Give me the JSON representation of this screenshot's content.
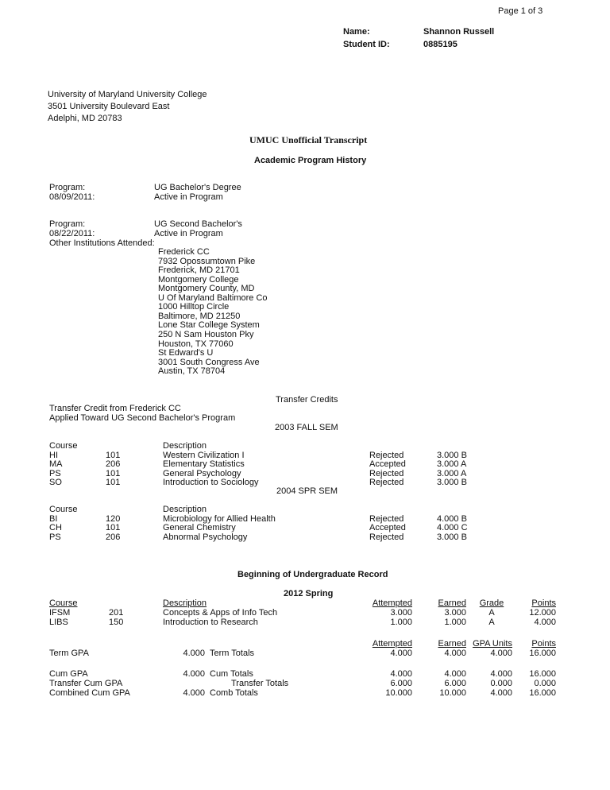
{
  "page_indicator": "Page 1 of 3",
  "student": {
    "name_label": "Name:",
    "name": "Shannon Russell",
    "id_label": "Student ID:",
    "id": "0885195"
  },
  "address": [
    "University of Maryland University College",
    "3501 University Boulevard East",
    "Adelphi, MD 20783"
  ],
  "title": "UMUC Unofficial Transcript",
  "program_history": {
    "heading": "Academic Program History",
    "programs": [
      {
        "label": "Program:",
        "value": "UG Bachelor's Degree",
        "date": "08/09/2011:",
        "status": "Active in Program"
      },
      {
        "label": "Program:",
        "value": "UG Second Bachelor's",
        "date": "08/22/2011:",
        "status": "Active in Program"
      }
    ],
    "other_label": "Other Institutions Attended:",
    "institutions": [
      "Frederick CC",
      "7932 Opossumtown Pike",
      "Frederick, MD 21701",
      "Montgomery College",
      "Montgomery County, MD",
      "U Of Maryland Baltimore Co",
      "1000 Hilltop Circle",
      "Baltimore, MD 21250",
      "Lone Star College System",
      "250 N Sam Houston Pky",
      "Houston, TX 77060",
      "St Edward's U",
      "3001 South Congress Ave",
      "Austin, TX 78704"
    ]
  },
  "transfer": {
    "heading": "Transfer Credits",
    "from": "Transfer Credit from Frederick CC",
    "applied": "Applied Toward UG Second Bachelor's Program",
    "terms": [
      {
        "term": "2003 FALL SEM",
        "course_header": "Course",
        "desc_header": "Description",
        "rows": [
          [
            "HI",
            "101",
            "Western Civilization I",
            "Rejected",
            "3.000 B"
          ],
          [
            "MA",
            "206",
            "Elementary Statistics",
            "Accepted",
            "3.000 A"
          ],
          [
            "PS",
            "101",
            "General Psychology",
            "Rejected",
            "3.000 A"
          ],
          [
            "SO",
            "101",
            "Introduction to Sociology",
            "Rejected",
            "3.000 B"
          ]
        ]
      },
      {
        "term": "2004 SPR SEM",
        "course_header": "Course",
        "desc_header": "Description",
        "rows": [
          [
            "BI",
            "120",
            "Microbiology for Allied Health",
            "Rejected",
            "4.000 B"
          ],
          [
            "CH",
            "101",
            "General Chemistry",
            "Accepted",
            "4.000 C"
          ],
          [
            "PS",
            "206",
            "Abnormal Psychology",
            "Rejected",
            "3.000 B"
          ]
        ]
      }
    ]
  },
  "undergrad": {
    "heading": "Beginning of Undergraduate Record",
    "term": "2012 Spring",
    "headers": {
      "course": "Course",
      "description": "Description",
      "attempted": "Attempted",
      "earned": "Earned",
      "grade": "Grade",
      "points": "Points"
    },
    "rows": [
      [
        "IFSM",
        "201",
        "Concepts & Apps of Info Tech",
        "3.000",
        "3.000",
        "A",
        "12.000"
      ],
      [
        "LIBS",
        "150",
        "Introduction to Research",
        "1.000",
        "1.000",
        "A",
        "4.000"
      ]
    ],
    "totals_headers": {
      "attempted": "Attempted",
      "earned": "Earned",
      "gpa_units": "GPA Units",
      "points": "Points"
    },
    "totals": [
      [
        "Term GPA",
        "4.000",
        "Term Totals",
        "4.000",
        "4.000",
        "4.000",
        "16.000"
      ],
      [
        "Cum GPA",
        "4.000",
        "Cum Totals",
        "4.000",
        "4.000",
        "4.000",
        "16.000"
      ],
      [
        "Transfer Cum GPA",
        "",
        "Transfer  Totals",
        "6.000",
        "6.000",
        "0.000",
        "0.000"
      ],
      [
        "Combined Cum GPA",
        "4.000",
        "Comb Totals",
        "10.000",
        "10.000",
        "4.000",
        "16.000"
      ]
    ]
  }
}
